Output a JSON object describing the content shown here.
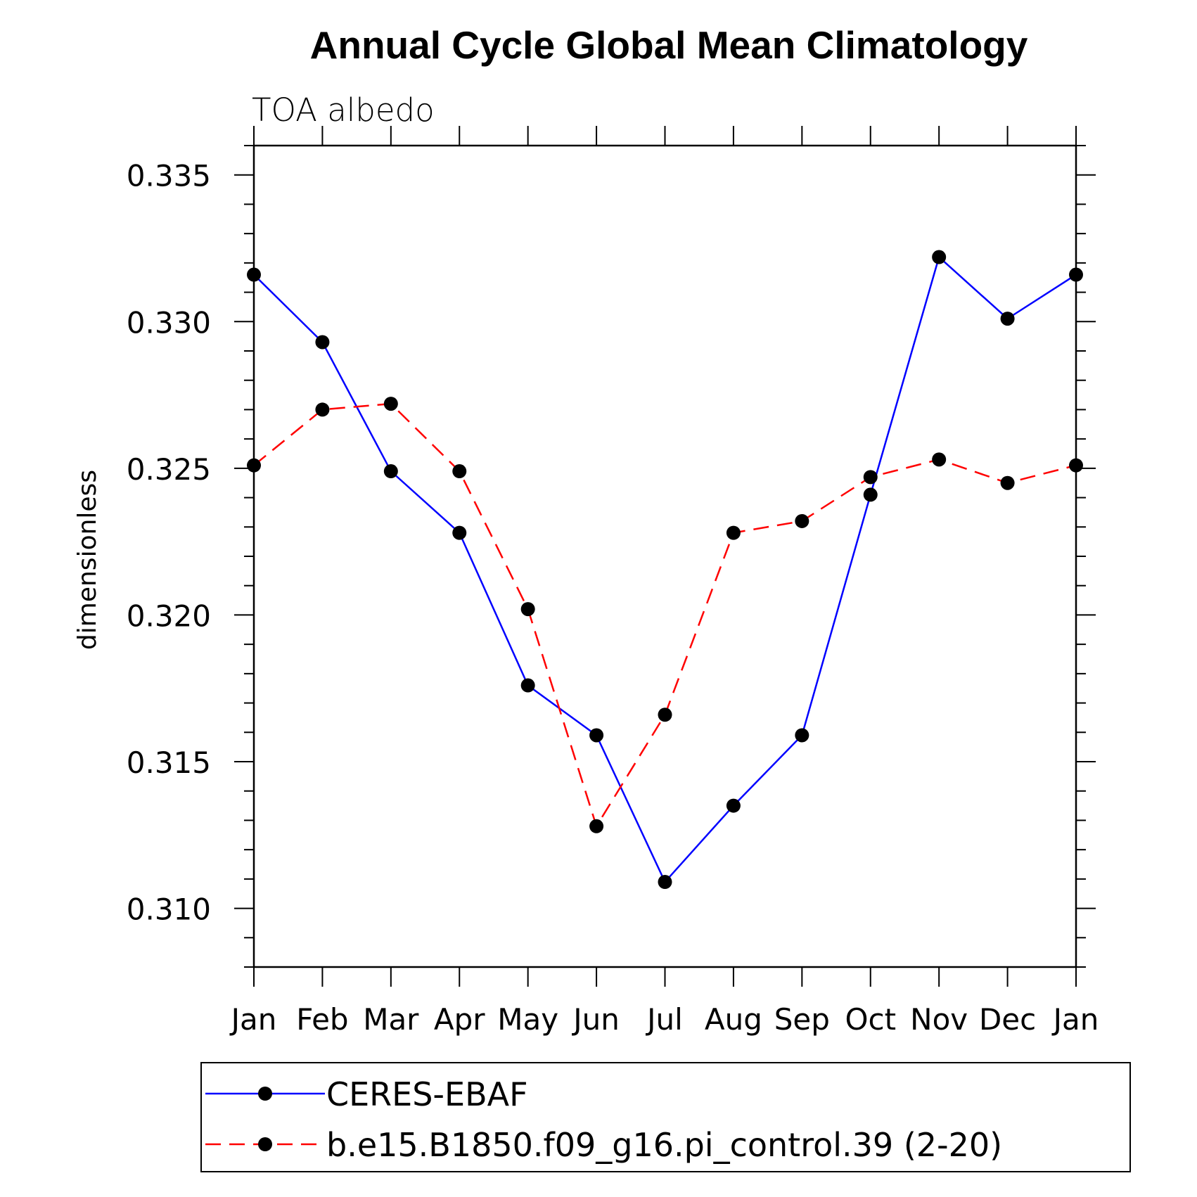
{
  "chart_data": {
    "type": "line",
    "title": "Annual Cycle Global Mean Climatology",
    "subtitle": "TOA albedo",
    "xlabel": "",
    "ylabel": "dimensionless",
    "categories": [
      "Jan",
      "Feb",
      "Mar",
      "Apr",
      "May",
      "Jun",
      "Jul",
      "Aug",
      "Sep",
      "Oct",
      "Nov",
      "Dec",
      "Jan"
    ],
    "ylim": [
      0.308,
      0.336
    ],
    "yticks": [
      0.31,
      0.315,
      0.32,
      0.325,
      0.33,
      0.335
    ],
    "ytick_labels": [
      "0.310",
      "0.315",
      "0.320",
      "0.325",
      "0.330",
      "0.335"
    ],
    "grid": false,
    "legend_position": "bottom",
    "series": [
      {
        "name": "CERES-EBAF",
        "color": "#0000ff",
        "line_style": "solid",
        "marker": "filled-circle",
        "values": [
          0.3316,
          0.3293,
          0.3249,
          0.3228,
          0.3176,
          0.3159,
          0.3109,
          0.3135,
          0.3159,
          0.3241,
          0.3322,
          0.3301,
          0.3316
        ]
      },
      {
        "name": "b.e15.B1850.f09_g16.pi_control.39 (2-20)",
        "color": "#ff0000",
        "line_style": "dashed",
        "marker": "filled-circle",
        "values": [
          0.3251,
          0.327,
          0.3272,
          0.3249,
          0.3202,
          0.3128,
          0.3166,
          0.3228,
          0.3232,
          0.3247,
          0.3253,
          0.3245,
          0.3251
        ]
      }
    ]
  }
}
